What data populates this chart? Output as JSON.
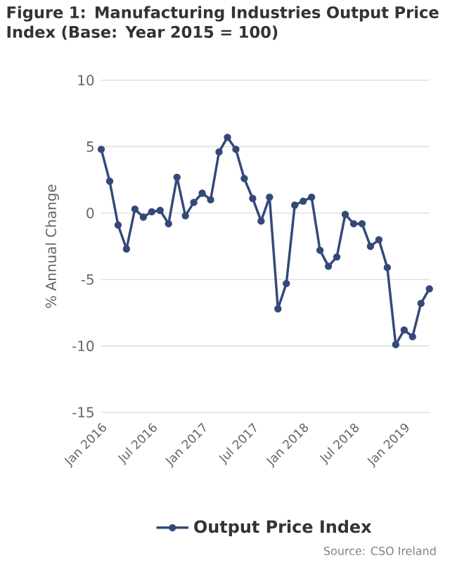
{
  "chart_data": {
    "type": "line",
    "title": "Figure 1: Manufacturing Industries Output Price Index (Base: Year 2015 = 100)",
    "ylabel": "% Annual Change",
    "x": [
      "2016-01",
      "2016-02",
      "2016-03",
      "2016-04",
      "2016-05",
      "2016-06",
      "2016-07",
      "2016-08",
      "2016-09",
      "2016-10",
      "2016-11",
      "2016-12",
      "2017-01",
      "2017-02",
      "2017-03",
      "2017-04",
      "2017-05",
      "2017-06",
      "2017-07",
      "2017-08",
      "2017-09",
      "2017-10",
      "2017-11",
      "2017-12",
      "2018-01",
      "2018-02",
      "2018-03",
      "2018-04",
      "2018-05",
      "2018-06",
      "2018-07",
      "2018-08",
      "2018-09",
      "2018-10",
      "2018-11",
      "2018-12",
      "2019-01",
      "2019-02",
      "2019-03",
      "2019-04"
    ],
    "series": [
      {
        "name": "Output Price Index",
        "color": "#34497a",
        "values": [
          4.8,
          2.4,
          -0.9,
          -2.7,
          0.3,
          -0.3,
          0.1,
          0.2,
          -0.8,
          2.7,
          -0.2,
          0.8,
          1.5,
          1.0,
          4.6,
          5.7,
          4.8,
          2.6,
          1.1,
          -0.6,
          1.2,
          -7.2,
          -5.3,
          0.6,
          0.9,
          1.2,
          -2.8,
          -4.0,
          -3.3,
          -0.1,
          -0.8,
          -0.8,
          -2.5,
          -2.0,
          -4.1,
          -9.9,
          -8.8,
          -9.3,
          -6.8,
          -5.7
        ]
      }
    ],
    "xlim": [
      "2016-01",
      "2019-04"
    ],
    "xticks": [
      {
        "value": "2016-01",
        "label": "Jan 2016"
      },
      {
        "value": "2016-07",
        "label": "Jul 2016"
      },
      {
        "value": "2017-01",
        "label": "Jan 2017"
      },
      {
        "value": "2017-07",
        "label": "Jul 2017"
      },
      {
        "value": "2018-01",
        "label": "Jan 2018"
      },
      {
        "value": "2018-07",
        "label": "Jul 2018"
      },
      {
        "value": "2019-01",
        "label": "Jan 2019"
      }
    ],
    "ylim": [
      -15,
      10
    ],
    "yticks": [
      -15,
      -10,
      -5,
      0,
      5,
      10
    ],
    "grid": "y",
    "legend": "bottom",
    "marker": "circle",
    "line_style": "solid",
    "annotations": [
      "Source: CSO Ireland"
    ]
  }
}
